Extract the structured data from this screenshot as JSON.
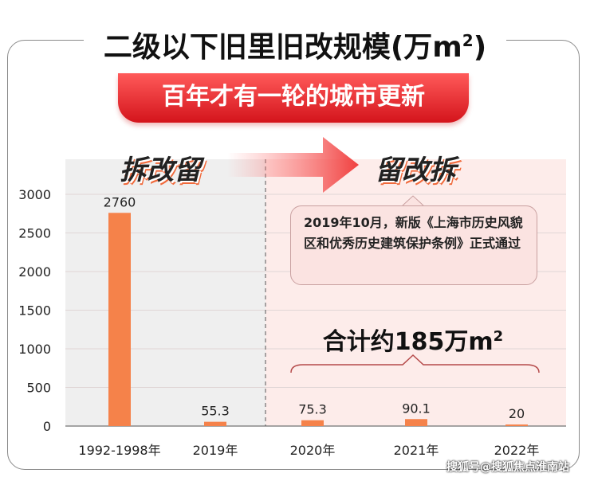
{
  "title": "二级以下旧里旧改规模(万m²)",
  "title_main": "二级以下旧里旧改规模(万m",
  "title_sup": "2",
  "title_close": ")",
  "banner": "百年才有一轮的城市更新",
  "phase_left": "拆改留",
  "phase_right": "留改拆",
  "callout": "2019年10月，新版《上海市历史风貌区和优秀历史建筑保护条例》正式通过",
  "total_main": "合计约185万m",
  "total_sup": "2",
  "watermark": "搜狐号@搜狐焦点淮南站",
  "colors": {
    "bar": "#f5824a",
    "banner": "#e0242a",
    "left_bg": "#efefef",
    "right_bg": "#fdecea"
  },
  "chart_data": {
    "type": "bar",
    "categories": [
      "1992-1998年",
      "2019年",
      "2020年",
      "2021年",
      "2022年"
    ],
    "values": [
      2760,
      55.3,
      75.3,
      90.1,
      20
    ],
    "value_labels": [
      "2760",
      "55.3",
      "75.3",
      "90.1",
      "20"
    ],
    "ylim": [
      0,
      3000
    ],
    "yticks": [
      "0",
      "500",
      "1000",
      "1500",
      "2000",
      "2500",
      "3000"
    ],
    "grid": true
  }
}
